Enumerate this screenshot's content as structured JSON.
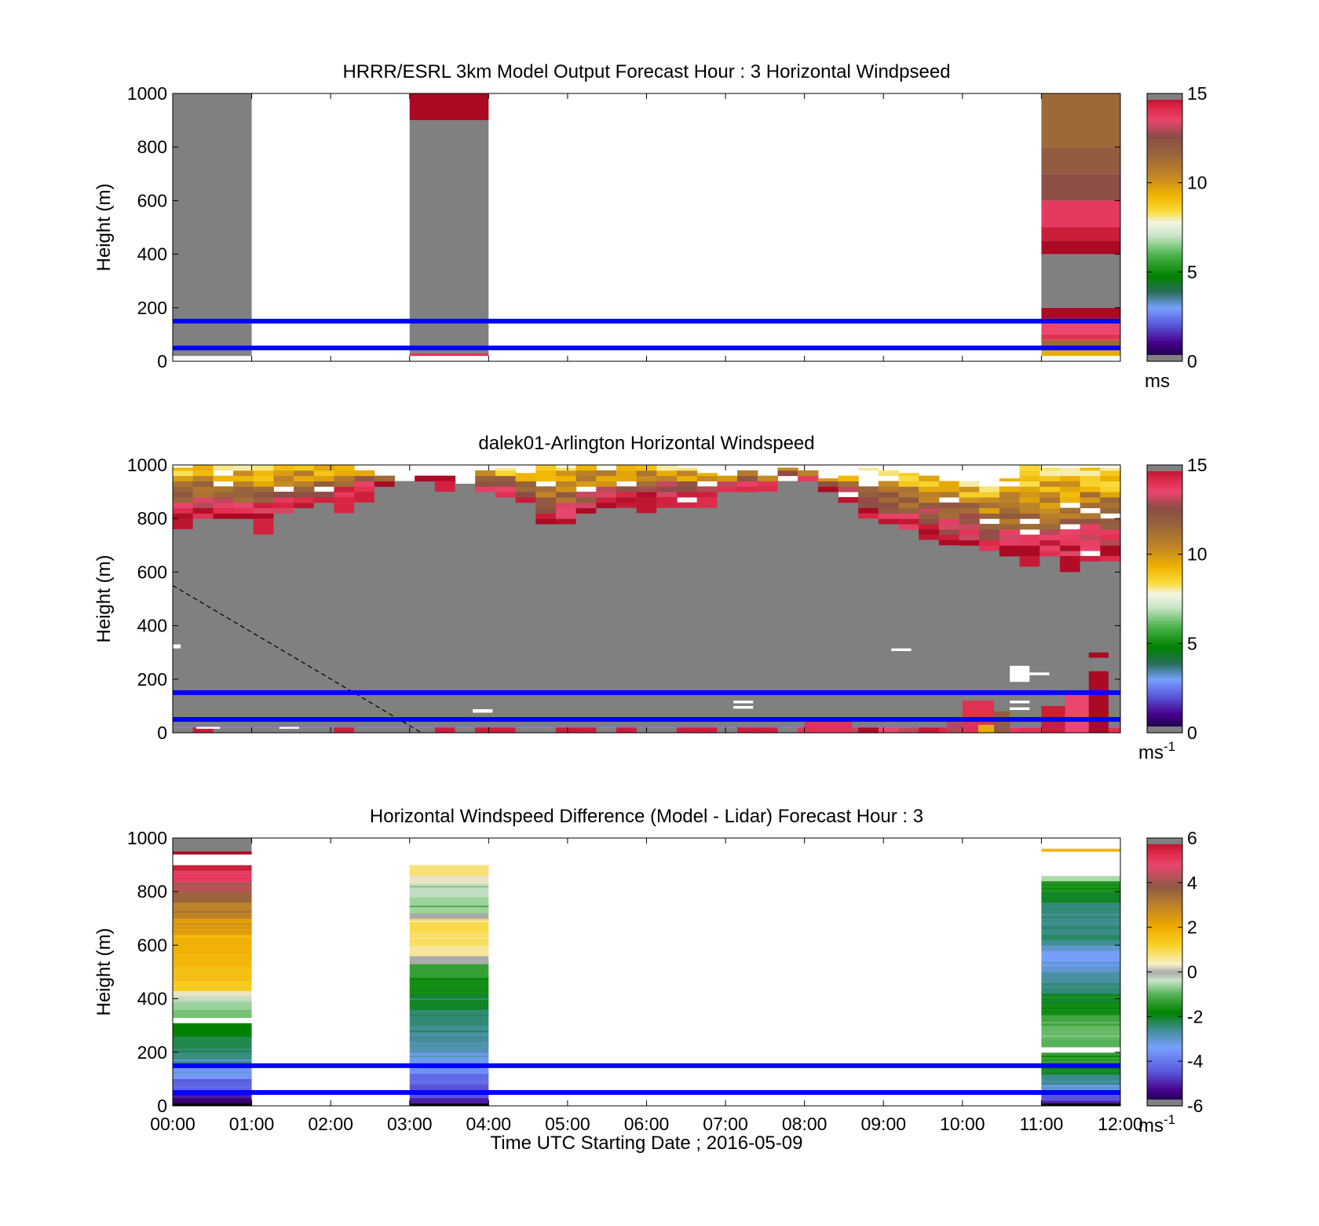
{
  "figure": {
    "xlabel": "Time UTC  Starting Date ; 2016-05-09",
    "x_ticks": [
      "00:00",
      "01:00",
      "02:00",
      "03:00",
      "04:00",
      "05:00",
      "06:00",
      "07:00",
      "08:00",
      "09:00",
      "10:00",
      "11:00",
      "12:00"
    ],
    "reference_lines_m": [
      50,
      150
    ],
    "reference_line_color": "#0000ff"
  },
  "chart_data": [
    {
      "type": "heatmap",
      "title": "HRRR/ESRL 3km Model Output   Forecast Hour : 3 Horizontal Windpseed",
      "ylabel": "Height (m)",
      "y_ticks": [
        "0",
        "200",
        "400",
        "600",
        "800",
        "1000"
      ],
      "xlim": [
        0,
        12
      ],
      "ylim": [
        0,
        1000
      ],
      "colorbar": {
        "ticks": [
          "0",
          "5",
          "10",
          "15"
        ],
        "units": "ms",
        "units_sup": "",
        "range": [
          0,
          15
        ]
      },
      "columns": [
        {
          "x0": 0,
          "x1": 1,
          "bands": [
            {
              "y0": 20,
              "y1": 30,
              "value": 0
            },
            {
              "y0": 30,
              "y1": 1000,
              "value": 0
            }
          ]
        },
        {
          "x0": 3,
          "x1": 4,
          "bands": [
            {
              "y0": 20,
              "y1": 30,
              "value": 14
            },
            {
              "y0": 30,
              "y1": 900,
              "value": 0
            },
            {
              "y0": 900,
              "y1": 1000,
              "value": 15
            }
          ]
        },
        {
          "x0": 11,
          "x1": 12,
          "bands": [
            {
              "y0": 20,
              "y1": 40,
              "value": 9.5
            },
            {
              "y0": 40,
              "y1": 80,
              "value": 11.5
            },
            {
              "y0": 80,
              "y1": 100,
              "value": 14
            },
            {
              "y0": 100,
              "y1": 140,
              "value": 13.5
            },
            {
              "y0": 140,
              "y1": 160,
              "value": 14.5
            },
            {
              "y0": 160,
              "y1": 200,
              "value": 15
            },
            {
              "y0": 200,
              "y1": 400,
              "value": 0
            },
            {
              "y0": 400,
              "y1": 450,
              "value": 15
            },
            {
              "y0": 450,
              "y1": 500,
              "value": 14.5
            },
            {
              "y0": 500,
              "y1": 600,
              "value": 13.8
            },
            {
              "y0": 600,
              "y1": 700,
              "value": 12.5
            },
            {
              "y0": 700,
              "y1": 800,
              "value": 12
            },
            {
              "y0": 800,
              "y1": 1000,
              "value": 11.5
            }
          ]
        }
      ]
    },
    {
      "type": "heatmap",
      "title": "dalek01-Arlington  Horizontal Windspeed",
      "ylabel": "Height (m)",
      "y_ticks": [
        "0",
        "200",
        "400",
        "600",
        "800",
        "1000"
      ],
      "xlim": [
        0,
        12
      ],
      "ylim": [
        0,
        1000
      ],
      "colorbar": {
        "ticks": [
          "0",
          "5",
          "10",
          "15"
        ],
        "units": "ms",
        "units_sup": "-1",
        "range": [
          0,
          15
        ]
      },
      "gray_top_m": [
        800,
        800,
        800,
        800,
        800,
        820,
        840,
        860,
        880,
        900,
        920,
        940,
        940,
        940,
        930,
        900,
        880,
        860,
        780,
        780,
        820,
        840,
        860,
        880,
        880,
        860,
        880,
        900,
        900,
        920,
        940,
        940,
        900,
        860,
        820,
        780,
        760,
        740,
        720,
        700,
        680,
        660,
        660,
        660,
        660,
        660,
        660
      ],
      "cap_top_m": [
        990,
        1000,
        1000,
        1000,
        1000,
        1000,
        1000,
        1000,
        1000,
        990,
        960,
        940,
        960,
        960,
        950,
        980,
        990,
        970,
        1000,
        990,
        1000,
        1000,
        1000,
        1000,
        1000,
        990,
        970,
        960,
        980,
        960,
        990,
        980,
        950,
        960,
        990,
        980,
        970,
        960,
        940,
        940,
        920,
        950,
        1000,
        990,
        990,
        990,
        990
      ],
      "dashed_line": {
        "points": [
          [
            0,
            550
          ],
          [
            3.15,
            0
          ]
        ]
      },
      "white_gaps": [
        {
          "x0": 0.0,
          "x1": 0.1,
          "y0": 315,
          "y1": 330
        },
        {
          "x0": 3.8,
          "x1": 4.05,
          "y0": 75,
          "y1": 88
        },
        {
          "x0": 7.1,
          "x1": 7.35,
          "y0": 90,
          "y1": 100
        },
        {
          "x0": 7.1,
          "x1": 7.35,
          "y0": 110,
          "y1": 120
        },
        {
          "x0": 9.1,
          "x1": 9.35,
          "y0": 305,
          "y1": 315
        },
        {
          "x0": 10.6,
          "x1": 10.85,
          "y0": 190,
          "y1": 250
        },
        {
          "x0": 10.85,
          "x1": 11.1,
          "y0": 215,
          "y1": 225
        },
        {
          "x0": 10.6,
          "x1": 10.85,
          "y0": 85,
          "y1": 95
        },
        {
          "x0": 10.6,
          "x1": 10.85,
          "y0": 110,
          "y1": 120
        },
        {
          "x0": 0.3,
          "x1": 0.6,
          "y0": 15,
          "y1": 22
        },
        {
          "x0": 1.35,
          "x1": 1.6,
          "y0": 15,
          "y1": 22
        }
      ]
    },
    {
      "type": "heatmap",
      "title": "Horizontal Windspeed Difference (Model - Lidar) Forecast Hour : 3",
      "ylabel": "Height (m)",
      "y_ticks": [
        "0",
        "200",
        "400",
        "600",
        "800",
        "1000"
      ],
      "xlim": [
        0,
        12
      ],
      "ylim": [
        0,
        1000
      ],
      "colorbar": {
        "ticks": [
          "-6",
          "-4",
          "-2",
          "0",
          "2",
          "4",
          "6"
        ],
        "units": "ms",
        "units_sup": "-1",
        "range": [
          -6,
          6
        ]
      },
      "columns": [
        {
          "x0": 0,
          "x1": 1,
          "profile": [
            [
              10,
              -6
            ],
            [
              30,
              -5.5
            ],
            [
              60,
              -5
            ],
            [
              100,
              -4.3
            ],
            [
              140,
              -3.5
            ],
            [
              160,
              -3
            ],
            [
              200,
              -2.5
            ],
            [
              260,
              -2.2
            ],
            [
              310,
              -1.8
            ],
            [
              330,
              "gap"
            ],
            [
              360,
              -0.8
            ],
            [
              390,
              -0.6
            ],
            [
              410,
              -0.3
            ],
            [
              430,
              0.3
            ],
            [
              470,
              1.3
            ],
            [
              520,
              1.6
            ],
            [
              580,
              1.8
            ],
            [
              640,
              1.9
            ],
            [
              700,
              2.3
            ],
            [
              760,
              3.0
            ],
            [
              800,
              3.6
            ],
            [
              840,
              4.3
            ],
            [
              880,
              5.0
            ],
            [
              900,
              5.6
            ],
            [
              940,
              "gap"
            ],
            [
              950,
              6
            ]
          ],
          "gray_top": [
            950,
            1000
          ]
        },
        {
          "x0": 3,
          "x1": 4,
          "profile": [
            [
              10,
              -6
            ],
            [
              30,
              -5
            ],
            [
              80,
              -4.5
            ],
            [
              120,
              -4.2
            ],
            [
              160,
              -3.6
            ],
            [
              200,
              -3.2
            ],
            [
              240,
              -2.8
            ],
            [
              300,
              -2.6
            ],
            [
              360,
              -2.4
            ],
            [
              420,
              -2.0
            ],
            [
              480,
              -1.6
            ],
            [
              530,
              -1.3
            ],
            [
              560,
              0
            ],
            [
              600,
              0.6
            ],
            [
              650,
              0.9
            ],
            [
              700,
              1.0
            ],
            [
              720,
              0
            ],
            [
              780,
              -0.6
            ],
            [
              830,
              -0.3
            ],
            [
              860,
              0.3
            ],
            [
              900,
              0.8
            ]
          ]
        },
        {
          "x0": 11,
          "x1": 12,
          "profile": [
            [
              10,
              -6
            ],
            [
              20,
              -5
            ],
            [
              50,
              -4.5
            ],
            [
              80,
              -3.0
            ],
            [
              120,
              -2.5
            ],
            [
              160,
              -2.0
            ],
            [
              200,
              -1.3
            ],
            [
              220,
              "gap"
            ],
            [
              250,
              -1.0
            ],
            [
              300,
              -0.9
            ],
            [
              340,
              -1.2
            ],
            [
              380,
              -1.6
            ],
            [
              420,
              -2.0
            ],
            [
              460,
              -2.4
            ],
            [
              500,
              -2.7
            ],
            [
              540,
              -3.0
            ],
            [
              560,
              -3.4
            ],
            [
              580,
              -3.3
            ],
            [
              600,
              -3.0
            ],
            [
              620,
              -2.6
            ],
            [
              640,
              -2.3
            ],
            [
              680,
              -2.5
            ],
            [
              720,
              -2.6
            ],
            [
              760,
              -2.4
            ],
            [
              800,
              -2.0
            ],
            [
              840,
              -1.5
            ],
            [
              860,
              -0.5
            ],
            [
              950,
              "gap"
            ],
            [
              960,
              1.8
            ]
          ]
        }
      ]
    }
  ]
}
